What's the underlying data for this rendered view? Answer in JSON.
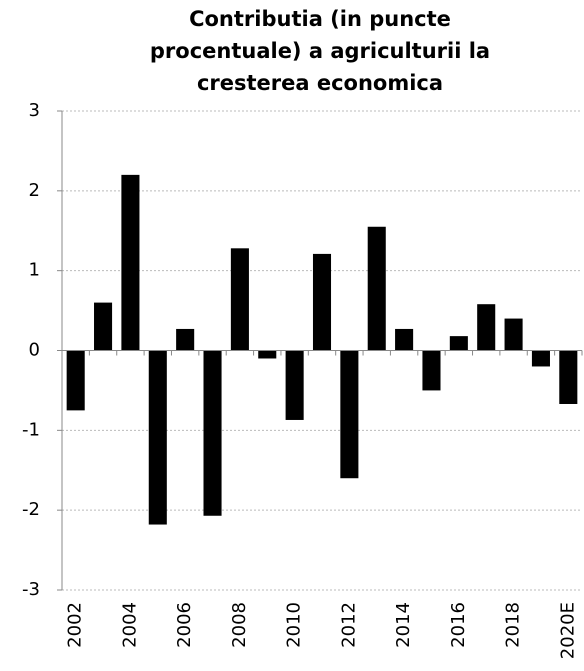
{
  "chart_data": {
    "type": "bar",
    "title": [
      "Contributia (in puncte",
      "procentuale) a agriculturii la",
      "cresterea  economica"
    ],
    "categories": [
      "2002",
      null,
      "2004",
      null,
      "2006",
      null,
      "2008",
      null,
      "2010",
      null,
      "2012",
      null,
      "2014",
      null,
      "2016",
      null,
      "2018",
      null,
      "2020E"
    ],
    "values": [
      -0.75,
      0.6,
      2.2,
      -2.18,
      0.27,
      -2.07,
      1.28,
      -0.1,
      -0.87,
      1.21,
      -1.6,
      1.55,
      0.27,
      -0.5,
      0.18,
      0.58,
      0.4,
      -0.2,
      -0.67
    ],
    "color": "#000000",
    "ylim": [
      -3,
      3
    ],
    "yticks": [
      -3,
      -2,
      -1,
      0,
      1,
      2,
      3
    ],
    "grid": true
  }
}
